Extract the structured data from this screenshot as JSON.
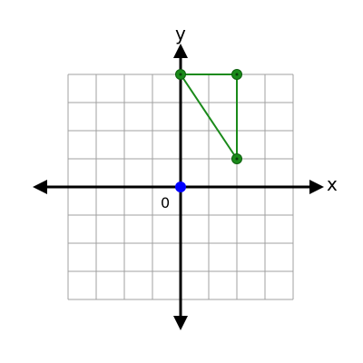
{
  "axes": {
    "x_label": "x",
    "y_label": "y",
    "origin_label": "0"
  },
  "grid": {
    "x_range": [
      -4,
      4
    ],
    "y_range": [
      -4,
      4
    ]
  },
  "colors": {
    "grid": "#a0a0a0",
    "axis": "#000000",
    "shape": "#1a8a1a",
    "origin_point": "#0000ff"
  },
  "origin_point": {
    "x": 0,
    "y": 0
  },
  "triangle": {
    "vertices": [
      {
        "x": 0,
        "y": 4
      },
      {
        "x": 2,
        "y": 4
      },
      {
        "x": 2,
        "y": 1
      }
    ]
  }
}
